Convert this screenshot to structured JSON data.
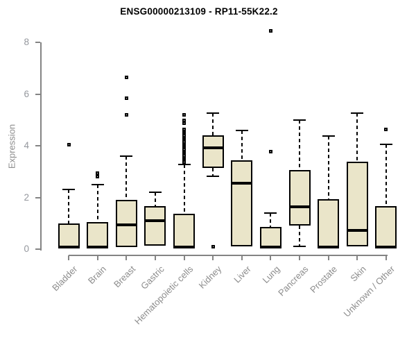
{
  "chart_data": {
    "type": "box",
    "title": "ENSG00000213109 - RP11-55K22.2",
    "ylabel": "Expression",
    "xlabel": "",
    "ylim": [
      0,
      8.5
    ],
    "yticks": [
      0,
      2,
      4,
      6,
      8
    ],
    "grid": false,
    "legend": "none",
    "box_fill": "#EAE5C9",
    "box_border": "#000000",
    "axis_color": "#848484",
    "tick_label_color": "#94979D",
    "category_label_color": "#8C8C8C",
    "title_color": "#000000",
    "categories": [
      "Bladder",
      "Brain",
      "Breast",
      "Gastric",
      "Hematopoietic cells",
      "Kidney",
      "Liver",
      "Lung",
      "Pancreas",
      "Prostate",
      "Skin",
      "Unknown / Other"
    ],
    "series": [
      {
        "name": "Bladder",
        "q1": 0.03,
        "median": 0.07,
        "q3": 1.0,
        "whisker_low": 0.03,
        "whisker_high": 2.3,
        "outliers": [
          4.05
        ]
      },
      {
        "name": "Brain",
        "q1": 0.03,
        "median": 0.07,
        "q3": 1.05,
        "whisker_low": 0.03,
        "whisker_high": 2.5,
        "outliers": [
          2.95,
          2.8
        ]
      },
      {
        "name": "Breast",
        "q1": 0.08,
        "median": 0.95,
        "q3": 1.9,
        "whisker_low": 0.08,
        "whisker_high": 3.6,
        "outliers": [
          6.65,
          5.85,
          5.2
        ]
      },
      {
        "name": "Gastric",
        "q1": 0.13,
        "median": 1.1,
        "q3": 1.66,
        "whisker_low": 0.13,
        "whisker_high": 2.2,
        "outliers": []
      },
      {
        "name": "Hematopoietic cells",
        "q1": 0.03,
        "median": 0.07,
        "q3": 1.37,
        "whisker_low": 0.03,
        "whisker_high": 3.27,
        "outliers": [
          5.2,
          4.97,
          4.88,
          4.62,
          4.56,
          4.5,
          4.44,
          4.38,
          4.32,
          4.26,
          4.2,
          4.14,
          4.08,
          4.02,
          3.96,
          3.9,
          3.84,
          3.78,
          3.72,
          3.66,
          3.6,
          3.54,
          3.48,
          3.42,
          3.37
        ]
      },
      {
        "name": "Kidney",
        "q1": 3.13,
        "median": 3.92,
        "q3": 4.4,
        "whisker_low": 2.82,
        "whisker_high": 5.25,
        "outliers": [
          0.1
        ]
      },
      {
        "name": "Liver",
        "q1": 0.1,
        "median": 2.55,
        "q3": 3.43,
        "whisker_low": 0.1,
        "whisker_high": 4.58,
        "outliers": []
      },
      {
        "name": "Lung",
        "q1": 0.03,
        "median": 0.07,
        "q3": 0.86,
        "whisker_low": 0.03,
        "whisker_high": 1.4,
        "outliers": [
          3.78,
          8.45
        ]
      },
      {
        "name": "Pancreas",
        "q1": 0.91,
        "median": 1.65,
        "q3": 3.05,
        "whisker_low": 0.12,
        "whisker_high": 4.98,
        "outliers": []
      },
      {
        "name": "Prostate",
        "q1": 0.03,
        "median": 0.07,
        "q3": 1.92,
        "whisker_low": 0.03,
        "whisker_high": 4.37,
        "outliers": []
      },
      {
        "name": "Skin",
        "q1": 0.1,
        "median": 0.72,
        "q3": 3.37,
        "whisker_low": 0.1,
        "whisker_high": 5.25,
        "outliers": []
      },
      {
        "name": "Unknown / Other",
        "q1": 0.03,
        "median": 0.07,
        "q3": 1.66,
        "whisker_low": 0.03,
        "whisker_high": 4.05,
        "outliers": [
          4.62
        ]
      }
    ]
  }
}
